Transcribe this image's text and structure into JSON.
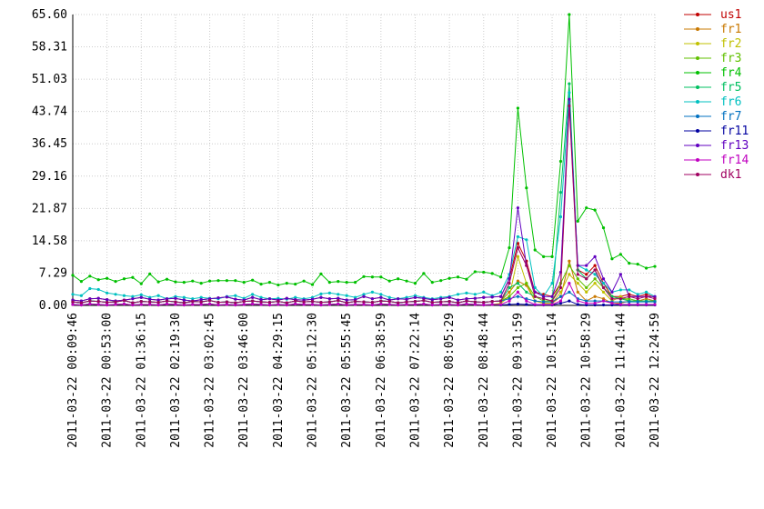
{
  "chart_data": {
    "type": "line",
    "categories": [
      "2011-03-22 00:09:46",
      null,
      null,
      null,
      "2011-03-22 00:53:00",
      null,
      null,
      null,
      "2011-03-22 01:36:15",
      null,
      null,
      null,
      "2011-03-22 02:19:30",
      null,
      null,
      null,
      "2011-03-22 03:02:45",
      null,
      null,
      null,
      "2011-03-22 03:46:00",
      null,
      null,
      null,
      "2011-03-22 04:29:15",
      null,
      null,
      null,
      "2011-03-22 05:12:30",
      null,
      null,
      null,
      "2011-03-22 05:55:45",
      null,
      null,
      null,
      "2011-03-22 06:38:59",
      null,
      null,
      null,
      "2011-03-22 07:22:14",
      null,
      null,
      null,
      "2011-03-22 08:05:29",
      null,
      null,
      null,
      "2011-03-22 08:48:44",
      null,
      null,
      null,
      "2011-03-22 09:31:59",
      null,
      null,
      null,
      "2011-03-22 10:15:14",
      null,
      null,
      null,
      "2011-03-22 10:58:29",
      null,
      null,
      null,
      "2011-03-22 11:41:44",
      null,
      null,
      null,
      "2011-03-22 12:24:59"
    ],
    "ylim": [
      0,
      65.6
    ],
    "yticks": [
      {
        "value": 0,
        "label": "0.00"
      },
      7.29,
      14.58,
      21.87,
      29.16,
      36.45,
      43.74,
      51.03,
      58.31,
      {
        "value": 65.6,
        "label": "65.60"
      }
    ],
    "grid": true,
    "legend": "right",
    "series": [
      {
        "name": "us1",
        "color": "#c00000",
        "values": [
          1.2,
          1.0,
          1.5,
          1.6,
          1.3,
          1.0,
          1.2,
          1.5,
          1.8,
          1.4,
          1.2,
          1.5,
          1.6,
          1.2,
          1.0,
          1.3,
          1.5,
          1.7,
          1.9,
          1.4,
          1.2,
          1.8,
          1.3,
          1.5,
          1.2,
          1.6,
          1.3,
          1.2,
          1.4,
          1.8,
          1.5,
          1.6,
          1.2,
          1.3,
          2.0,
          1.5,
          1.8,
          1.2,
          1.5,
          1.4,
          1.8,
          1.6,
          1.3,
          1.5,
          1.8,
          1.2,
          1.5,
          1.6,
          1.8,
          1.9,
          2.0,
          6.0,
          14.0,
          10.0,
          3.0,
          2.5,
          2.0,
          5.0,
          46.0,
          8.0,
          7.0,
          9.0,
          5.0,
          2.0,
          2.0,
          2.5,
          2.0,
          2.5,
          1.8
        ]
      },
      {
        "name": "fr1",
        "color": "#c87800",
        "values": [
          0.8,
          0.6,
          1.0,
          0.9,
          0.7,
          0.8,
          1.1,
          0.6,
          0.9,
          0.8,
          0.7,
          1.0,
          0.8,
          0.6,
          0.9,
          0.8,
          1.1,
          0.7,
          0.8,
          0.6,
          0.9,
          1.0,
          0.8,
          0.7,
          0.9,
          0.6,
          1.0,
          0.8,
          0.9,
          0.7,
          0.8,
          1.1,
          0.6,
          0.9,
          0.8,
          0.7,
          1.0,
          0.9,
          0.6,
          0.8,
          0.9,
          1.1,
          0.7,
          0.8,
          0.9,
          0.6,
          1.0,
          0.8,
          0.7,
          0.9,
          1.0,
          3.0,
          5.5,
          4.5,
          1.0,
          0.5,
          0.5,
          2.0,
          10.0,
          3.0,
          1.0,
          2.0,
          1.5,
          0.5,
          0.5,
          1.0,
          1.0,
          1.5,
          1.0
        ]
      },
      {
        "name": "fr2",
        "color": "#c0c000",
        "values": [
          0.2,
          0.1,
          0.3,
          0.2,
          0.1,
          0.2,
          0.3,
          0.1,
          0.2,
          0.2,
          0.1,
          0.3,
          0.2,
          0.1,
          0.2,
          0.2,
          0.3,
          0.1,
          0.2,
          0.1,
          0.2,
          0.3,
          0.2,
          0.1,
          0.2,
          0.1,
          0.3,
          0.2,
          0.2,
          0.1,
          0.2,
          0.3,
          0.1,
          0.2,
          0.2,
          0.1,
          0.3,
          0.2,
          0.1,
          0.2,
          0.2,
          0.3,
          0.1,
          0.2,
          0.2,
          0.1,
          0.3,
          0.2,
          0.1,
          0.2,
          0.5,
          2.0,
          11.0,
          5.0,
          1.0,
          0.5,
          0.5,
          3.0,
          7.0,
          5.0,
          3.0,
          5.0,
          3.0,
          1.0,
          2.0,
          1.0,
          1.0,
          1.0,
          0.8
        ]
      },
      {
        "name": "fr3",
        "color": "#60c000",
        "values": [
          0.8,
          0.6,
          1.0,
          0.9,
          0.7,
          0.8,
          1.1,
          0.6,
          0.9,
          0.8,
          0.7,
          1.0,
          0.8,
          0.6,
          0.9,
          0.8,
          1.1,
          0.7,
          0.8,
          0.6,
          0.9,
          1.0,
          0.8,
          0.7,
          0.9,
          0.6,
          1.0,
          0.8,
          0.9,
          0.7,
          0.8,
          1.1,
          0.6,
          0.9,
          0.8,
          0.7,
          1.0,
          0.9,
          0.6,
          0.8,
          0.9,
          1.1,
          0.7,
          0.8,
          0.9,
          0.6,
          1.0,
          0.8,
          0.7,
          0.9,
          1.0,
          2.0,
          4.0,
          5.0,
          2.0,
          1.0,
          1.0,
          5.0,
          9.0,
          6.0,
          4.0,
          6.0,
          4.0,
          2.0,
          1.5,
          1.5,
          1.0,
          1.0,
          1.0
        ]
      },
      {
        "name": "fr4",
        "color": "#00c000",
        "values": [
          6.8,
          5.4,
          6.6,
          5.8,
          6.1,
          5.4,
          6.0,
          6.3,
          4.9,
          7.1,
          5.3,
          5.9,
          5.3,
          5.2,
          5.5,
          5.0,
          5.5,
          5.6,
          5.6,
          5.6,
          5.2,
          5.7,
          4.8,
          5.2,
          4.6,
          5.0,
          4.8,
          5.5,
          4.7,
          7.1,
          5.2,
          5.4,
          5.2,
          5.2,
          6.5,
          6.4,
          6.4,
          5.5,
          6.0,
          5.5,
          5.0,
          7.2,
          5.2,
          5.6,
          6.1,
          6.4,
          5.9,
          7.6,
          7.5,
          7.2,
          6.4,
          13.0,
          44.5,
          26.5,
          12.5,
          11.0,
          11.0,
          32.5,
          65.6,
          19.0,
          22.0,
          21.5,
          17.5,
          10.5,
          11.5,
          9.5,
          9.3,
          8.4,
          8.8
        ]
      },
      {
        "name": "fr5",
        "color": "#00c060",
        "values": [
          0.8,
          0.6,
          1.0,
          0.9,
          0.7,
          0.8,
          1.1,
          0.6,
          0.9,
          0.8,
          0.7,
          1.0,
          0.8,
          0.6,
          0.9,
          0.8,
          1.1,
          0.7,
          0.8,
          0.6,
          0.9,
          1.0,
          0.8,
          0.7,
          0.9,
          0.6,
          1.0,
          0.8,
          0.9,
          0.7,
          0.8,
          1.1,
          0.6,
          0.9,
          0.8,
          0.7,
          1.0,
          0.9,
          0.6,
          0.8,
          0.9,
          1.1,
          0.7,
          0.8,
          0.9,
          0.6,
          1.0,
          0.8,
          0.7,
          0.9,
          1.0,
          4.0,
          5.0,
          3.0,
          2.0,
          1.5,
          1.0,
          25.5,
          50.0,
          8.0,
          6.0,
          8.0,
          4.0,
          2.0,
          1.5,
          1.0,
          1.0,
          1.0,
          1.0
        ]
      },
      {
        "name": "fr6",
        "color": "#00c0c0",
        "values": [
          2.5,
          2.2,
          3.8,
          3.6,
          2.8,
          2.5,
          2.2,
          2.0,
          2.4,
          1.8,
          2.2,
          1.5,
          2.0,
          1.8,
          1.5,
          1.8,
          1.6,
          1.5,
          2.0,
          2.2,
          1.6,
          2.5,
          1.8,
          1.5,
          1.6,
          1.4,
          1.8,
          1.5,
          1.8,
          2.6,
          2.8,
          2.5,
          2.2,
          1.8,
          2.5,
          3.0,
          2.5,
          1.8,
          1.5,
          1.8,
          2.2,
          1.8,
          1.5,
          1.8,
          2.0,
          2.5,
          2.8,
          2.5,
          3.0,
          2.2,
          3.0,
          7.0,
          15.5,
          14.8,
          4.0,
          2.0,
          5.0,
          20.0,
          48.0,
          9.0,
          8.0,
          7.0,
          5.0,
          3.0,
          3.5,
          3.5,
          2.5,
          3.0,
          2.0
        ]
      },
      {
        "name": "fr7",
        "color": "#0070c0",
        "values": [
          0.8,
          0.6,
          1.0,
          0.9,
          0.7,
          0.8,
          1.1,
          0.6,
          0.9,
          0.8,
          0.7,
          1.0,
          0.8,
          0.6,
          0.9,
          0.8,
          1.1,
          0.7,
          0.8,
          0.6,
          0.9,
          1.0,
          0.8,
          0.7,
          0.9,
          0.6,
          1.0,
          0.8,
          0.9,
          0.7,
          0.8,
          1.1,
          0.6,
          0.9,
          0.8,
          0.7,
          1.0,
          0.9,
          0.6,
          0.8,
          0.9,
          1.1,
          0.7,
          0.8,
          0.9,
          0.6,
          1.0,
          0.8,
          0.7,
          0.9,
          1.0,
          1.5,
          2.0,
          1.5,
          1.0,
          0.8,
          0.8,
          2.0,
          3.0,
          1.5,
          1.0,
          1.0,
          1.0,
          0.8,
          0.8,
          0.8,
          0.8,
          0.8,
          0.8
        ]
      },
      {
        "name": "fr11",
        "color": "#0000a0",
        "values": [
          0.2,
          0.1,
          0.3,
          0.2,
          0.1,
          0.2,
          0.3,
          0.1,
          0.2,
          0.2,
          0.1,
          0.3,
          0.2,
          0.1,
          0.2,
          0.2,
          0.3,
          0.1,
          0.2,
          0.1,
          0.2,
          0.3,
          0.2,
          0.1,
          0.2,
          0.1,
          0.3,
          0.2,
          0.2,
          0.1,
          0.2,
          0.3,
          0.1,
          0.2,
          0.2,
          0.1,
          0.3,
          0.2,
          0.1,
          0.2,
          0.2,
          0.3,
          0.1,
          0.2,
          0.2,
          0.1,
          0.3,
          0.2,
          0.1,
          0.2,
          0.1,
          0.2,
          0.3,
          0.2,
          0.1,
          0.1,
          0.1,
          0.5,
          1.0,
          0.2,
          0.1,
          0.1,
          0.1,
          0.1,
          0.1,
          0.1,
          0.1,
          0.1,
          0.1
        ]
      },
      {
        "name": "fr13",
        "color": "#6000c0",
        "values": [
          1.2,
          1.0,
          1.5,
          1.6,
          1.3,
          1.0,
          1.2,
          1.5,
          1.8,
          1.4,
          1.2,
          1.5,
          1.6,
          1.2,
          1.0,
          1.3,
          1.5,
          1.7,
          1.9,
          1.4,
          1.2,
          1.8,
          1.3,
          1.5,
          1.2,
          1.6,
          1.3,
          1.2,
          1.4,
          1.8,
          1.5,
          1.6,
          1.2,
          1.3,
          2.0,
          1.5,
          1.8,
          1.2,
          1.5,
          1.4,
          1.8,
          1.6,
          1.3,
          1.5,
          1.8,
          1.2,
          1.5,
          1.6,
          1.8,
          1.9,
          2.0,
          6.0,
          22.0,
          9.0,
          3.0,
          2.0,
          2.0,
          7.5,
          46.5,
          9.0,
          9.0,
          11.0,
          6.0,
          3.0,
          7.0,
          2.0,
          2.0,
          2.0,
          2.0
        ]
      },
      {
        "name": "fr14",
        "color": "#c000c0",
        "values": [
          0.2,
          0.1,
          0.3,
          0.2,
          0.1,
          0.2,
          0.3,
          0.1,
          0.2,
          0.2,
          0.1,
          0.3,
          0.2,
          0.1,
          0.2,
          0.2,
          0.3,
          0.1,
          0.2,
          0.1,
          0.2,
          0.3,
          0.2,
          0.1,
          0.2,
          0.1,
          0.3,
          0.2,
          0.2,
          0.1,
          0.2,
          0.3,
          0.1,
          0.2,
          0.2,
          0.1,
          0.3,
          0.2,
          0.1,
          0.2,
          0.2,
          0.3,
          0.1,
          0.2,
          0.2,
          0.1,
          0.3,
          0.2,
          0.1,
          0.2,
          0.2,
          1.0,
          3.0,
          1.0,
          0.2,
          0.2,
          0.2,
          1.0,
          5.0,
          1.0,
          0.5,
          0.5,
          1.0,
          0.5,
          0.2,
          0.2,
          0.2,
          0.2,
          0.2
        ]
      },
      {
        "name": "dk1",
        "color": "#a00060",
        "values": [
          0.8,
          0.6,
          1.0,
          0.9,
          0.7,
          0.8,
          1.1,
          0.6,
          0.9,
          0.8,
          0.7,
          1.0,
          0.8,
          0.6,
          0.9,
          0.8,
          1.1,
          0.7,
          0.8,
          0.6,
          0.9,
          1.0,
          0.8,
          0.7,
          0.9,
          0.6,
          1.0,
          0.8,
          0.9,
          0.7,
          0.8,
          1.1,
          0.6,
          0.9,
          0.8,
          0.7,
          1.0,
          0.9,
          0.6,
          0.8,
          0.9,
          1.1,
          0.7,
          0.8,
          0.9,
          0.6,
          1.0,
          0.8,
          0.7,
          0.9,
          1.0,
          5.0,
          13.0,
          9.0,
          2.0,
          1.5,
          1.0,
          4.0,
          45.0,
          7.0,
          6.0,
          8.0,
          4.0,
          1.5,
          1.5,
          2.0,
          1.5,
          2.0,
          1.5
        ]
      }
    ]
  }
}
